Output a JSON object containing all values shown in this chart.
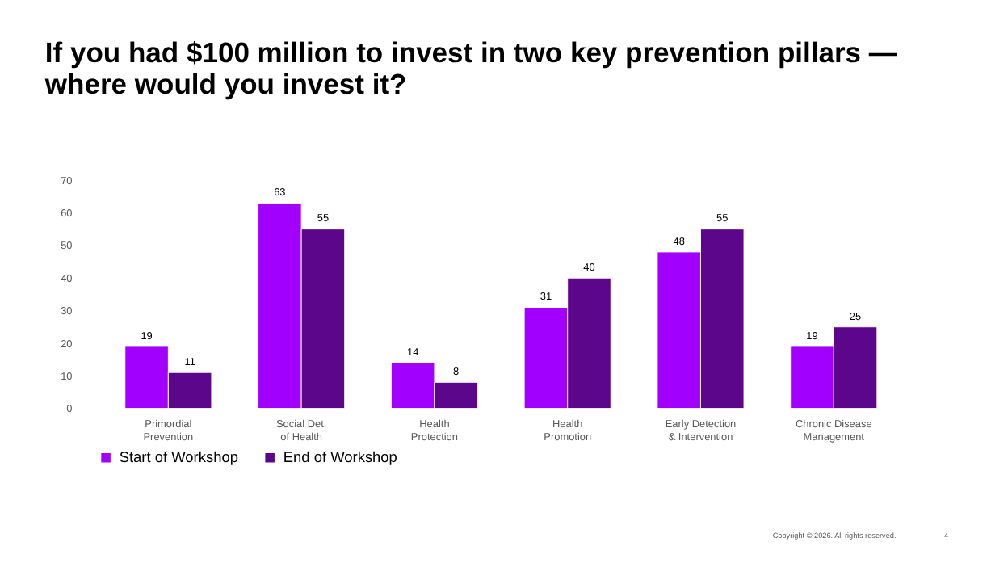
{
  "chart_data": {
    "type": "bar",
    "title": "If you had $100 million to invest in two key prevention pillars —\nwhere would you invest it?",
    "categories": [
      "Primordial\nPrevention",
      "Social Det.\nof Health",
      "Health\nProtection",
      "Health\nPromotion",
      "Early Detection\n& Intervention",
      "Chronic Disease\nManagement"
    ],
    "series": [
      {
        "name": "Start of Workshop",
        "color": "#a100ff",
        "values": [
          19,
          63,
          14,
          31,
          48,
          19
        ]
      },
      {
        "name": "End of Workshop",
        "color": "#5c068c",
        "values": [
          11,
          55,
          8,
          40,
          55,
          25
        ]
      }
    ],
    "ylim": [
      0,
      70
    ],
    "yticks": [
      0,
      10,
      20,
      30,
      40,
      50,
      60,
      70
    ],
    "data_labels": true,
    "grid": false,
    "legend": "bottom",
    "annotations": [
      "Copyright © 2026. All rights reserved.",
      "4"
    ]
  }
}
